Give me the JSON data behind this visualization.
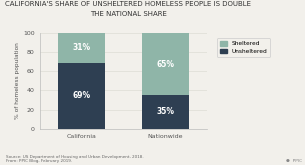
{
  "title_line1": "CALIFORNIA'S SHARE OF UNSHELTERED HOMELESS PEOPLE IS DOUBLE",
  "title_line2": "THE NATIONAL SHARE",
  "categories": [
    "California",
    "Nationwide"
  ],
  "unsheltered": [
    69,
    35
  ],
  "sheltered": [
    31,
    65
  ],
  "unsheltered_color": "#2e3f52",
  "sheltered_color": "#8fb5a8",
  "ylabel": "% of homeless population",
  "ylim": [
    0,
    100
  ],
  "yticks": [
    0,
    20,
    40,
    60,
    80,
    100
  ],
  "source_text": "Source: US Department of Housing and Urban Development, 2018.\nFrom: PPIC Blog, February 2019.",
  "ppic_text": "●  PPIC",
  "background_color": "#f2f0eb",
  "title_fontsize": 5.0,
  "label_fontsize": 5.5,
  "tick_fontsize": 4.5,
  "ylabel_fontsize": 4.2,
  "legend_fontsize": 4.2,
  "bar_width": 0.28,
  "bar_positions": [
    0.25,
    0.75
  ]
}
